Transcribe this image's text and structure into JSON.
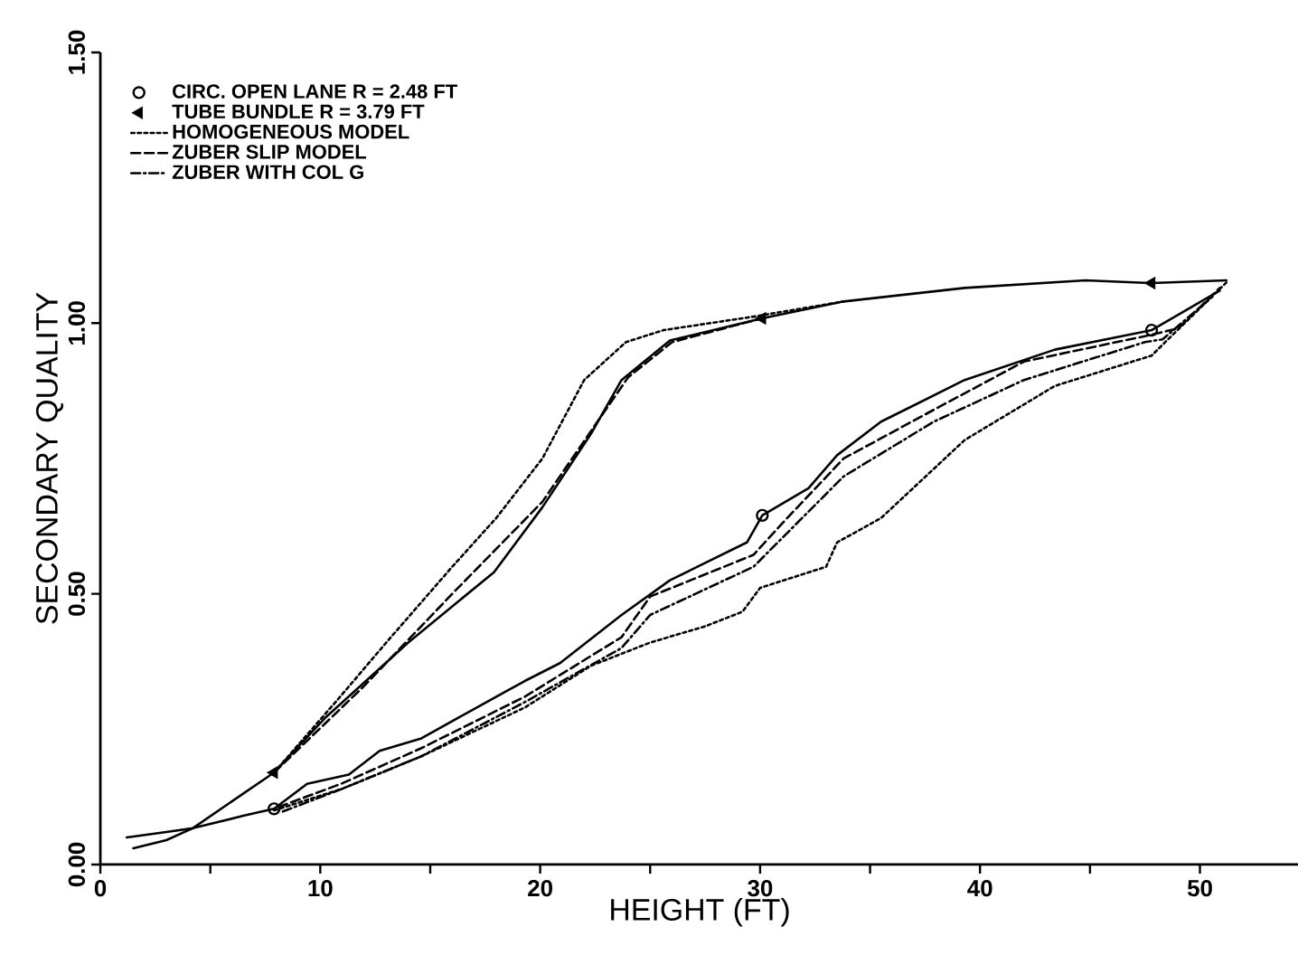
{
  "chart_data": {
    "type": "line",
    "xlabel": "HEIGHT (FT)",
    "ylabel": "SECONDARY QUALITY",
    "xlim": [
      0,
      54.5
    ],
    "ylim": [
      0,
      1.5
    ],
    "xticks": [
      0,
      {
        "value": 5,
        "label": null
      },
      10,
      {
        "value": 15,
        "label": null
      },
      20,
      {
        "value": 25,
        "label": null
      },
      30,
      {
        "value": 35,
        "label": null
      },
      40,
      {
        "value": 45,
        "label": null
      },
      50
    ],
    "yticks": [
      {
        "value": 0,
        "label": "0.00"
      },
      {
        "value": 0.5,
        "label": "0.50"
      },
      {
        "value": 1,
        "label": "1.00"
      },
      {
        "value": 1.5,
        "label": "1.50"
      }
    ],
    "legend": "top left",
    "series": [
      {
        "name": "CIRC. OPEN LANE   R = 2.48 FT",
        "type": "scatter",
        "marker": "circle",
        "color": "#000000",
        "x": [
          7.9,
          30.1,
          47.8
        ],
        "values": [
          0.103,
          0.645,
          0.987
        ]
      },
      {
        "name": "TUBE BUNDLE          R = 3.79 FT",
        "type": "scatter",
        "marker": "triangle",
        "color": "#000000",
        "x": [
          7.9,
          30.1,
          47.8
        ],
        "values": [
          0.17,
          1.009,
          1.074
        ]
      },
      {
        "name": "HOMOGENEOUS MODEL",
        "line_style": "dotted",
        "color": "#000000",
        "x": [
          7.9,
          11,
          14.6,
          19.3,
          22.3,
          25,
          27.5,
          29.2,
          30,
          33,
          33.5,
          35.5,
          39.3,
          43.4,
          47.8,
          48.5,
          51.2
        ],
        "values": [
          0.1,
          0.14,
          0.2,
          0.29,
          0.367,
          0.41,
          0.44,
          0.467,
          0.511,
          0.55,
          0.595,
          0.64,
          0.784,
          0.884,
          0.94,
          0.968,
          1.075
        ]
      },
      {
        "name": "ZUBER SLIP MODEL",
        "line_style": "dashed",
        "color": "#000000",
        "x": [
          8.1,
          11,
          14.6,
          19.3,
          23.7,
          25,
          29.7,
          31,
          33.8,
          37.9,
          42,
          47.5,
          49,
          50.9
        ],
        "values": [
          0.106,
          0.15,
          0.215,
          0.31,
          0.42,
          0.495,
          0.572,
          0.63,
          0.75,
          0.84,
          0.929,
          0.976,
          0.99,
          1.065
        ]
      },
      {
        "name": "ZUBER WITH COL G",
        "line_style": "dashdot",
        "color": "#000000",
        "x": [
          8.3,
          11,
          14.6,
          19.3,
          23.7,
          25,
          29.7,
          33.8,
          37.9,
          42,
          47.5,
          48.3,
          50.6
        ],
        "values": [
          0.098,
          0.14,
          0.2,
          0.3,
          0.4,
          0.461,
          0.55,
          0.717,
          0.818,
          0.895,
          0.965,
          0.97,
          1.05
        ]
      },
      {
        "line_style": "solid",
        "color": "#000000",
        "x": [
          1.2,
          3,
          4.2,
          6.5,
          7.9,
          9.4,
          11.3,
          12.7,
          14.6,
          16.8,
          19.3,
          20.9,
          23.7,
          25.9,
          29.4,
          30.1,
          32.2,
          33.5,
          35.5,
          39.3,
          43.4,
          47.8,
          50.9
        ],
        "values": [
          0.05,
          0.06,
          0.067,
          0.09,
          0.103,
          0.149,
          0.166,
          0.21,
          0.233,
          0.283,
          0.339,
          0.372,
          0.461,
          0.525,
          0.595,
          0.645,
          0.695,
          0.756,
          0.818,
          0.895,
          0.951,
          0.987,
          1.06
        ]
      },
      {
        "line_style": "solid",
        "color": "#000000",
        "x": [
          1.5,
          3,
          4.2,
          7.9,
          10.2,
          14,
          17.9,
          20.1,
          22.3,
          23.7,
          25.9,
          30.1,
          33.8,
          39.3,
          44.8,
          47.8,
          51.2
        ],
        "values": [
          0.03,
          0.045,
          0.067,
          0.17,
          0.27,
          0.41,
          0.54,
          0.66,
          0.795,
          0.895,
          0.968,
          1.009,
          1.04,
          1.065,
          1.079,
          1.074,
          1.079
        ]
      },
      {
        "line_style": "dotted",
        "color": "#000000",
        "x": [
          7.9,
          10.8,
          13,
          16,
          18,
          20.1,
          22,
          23.9,
          25.6,
          29.7,
          33.8
        ],
        "values": [
          0.17,
          0.305,
          0.41,
          0.55,
          0.64,
          0.75,
          0.895,
          0.965,
          0.987,
          1.012,
          1.04
        ]
      },
      {
        "line_style": "dashed",
        "color": "#000000",
        "x": [
          7.9,
          12,
          16,
          20.1,
          22.3,
          24,
          26,
          30.1
        ],
        "values": [
          0.17,
          0.33,
          0.5,
          0.67,
          0.8,
          0.9,
          0.965,
          1.009
        ]
      }
    ]
  }
}
